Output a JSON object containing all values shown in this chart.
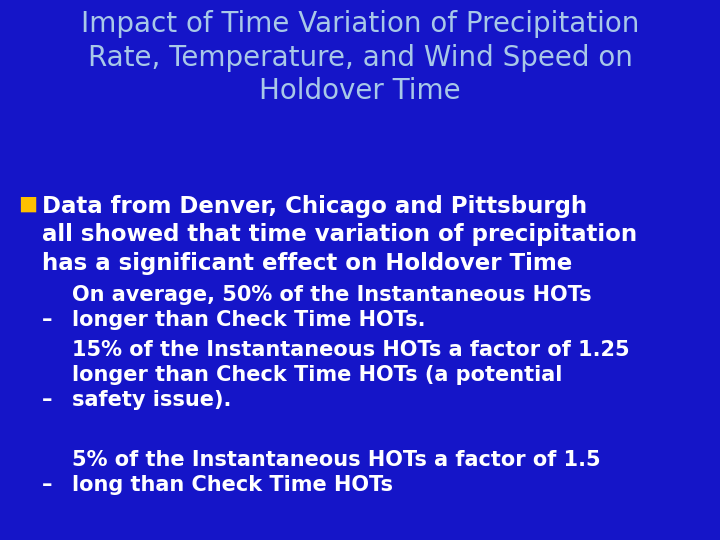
{
  "background_color": "#1515c8",
  "title_text": "Impact of Time Variation of Precipitation\nRate, Temperature, and Wind Speed on\nHoldover Time",
  "title_color": "#a8c8e8",
  "title_fontsize": 20,
  "title_bold": false,
  "bullet_color": "#ffffff",
  "bullet_fontsize": 16.5,
  "bullet_marker_color": "#ffc000",
  "sub_bullet_color": "#ffffff",
  "sub_bullet_fontsize": 15,
  "bullet_text": "Data from Denver, Chicago and Pittsburgh\nall showed that time variation of precipitation\nhas a significant effect on Holdover Time",
  "sub_bullets": [
    "On average, 50% of the Instantaneous HOTs\nlonger than Check Time HOTs.",
    "15% of the Instantaneous HOTs a factor of 1.25\nlonger than Check Time HOTs (a potential\nsafety issue).",
    "5% of the Instantaneous HOTs a factor of 1.5\nlong than Check Time HOTs"
  ]
}
